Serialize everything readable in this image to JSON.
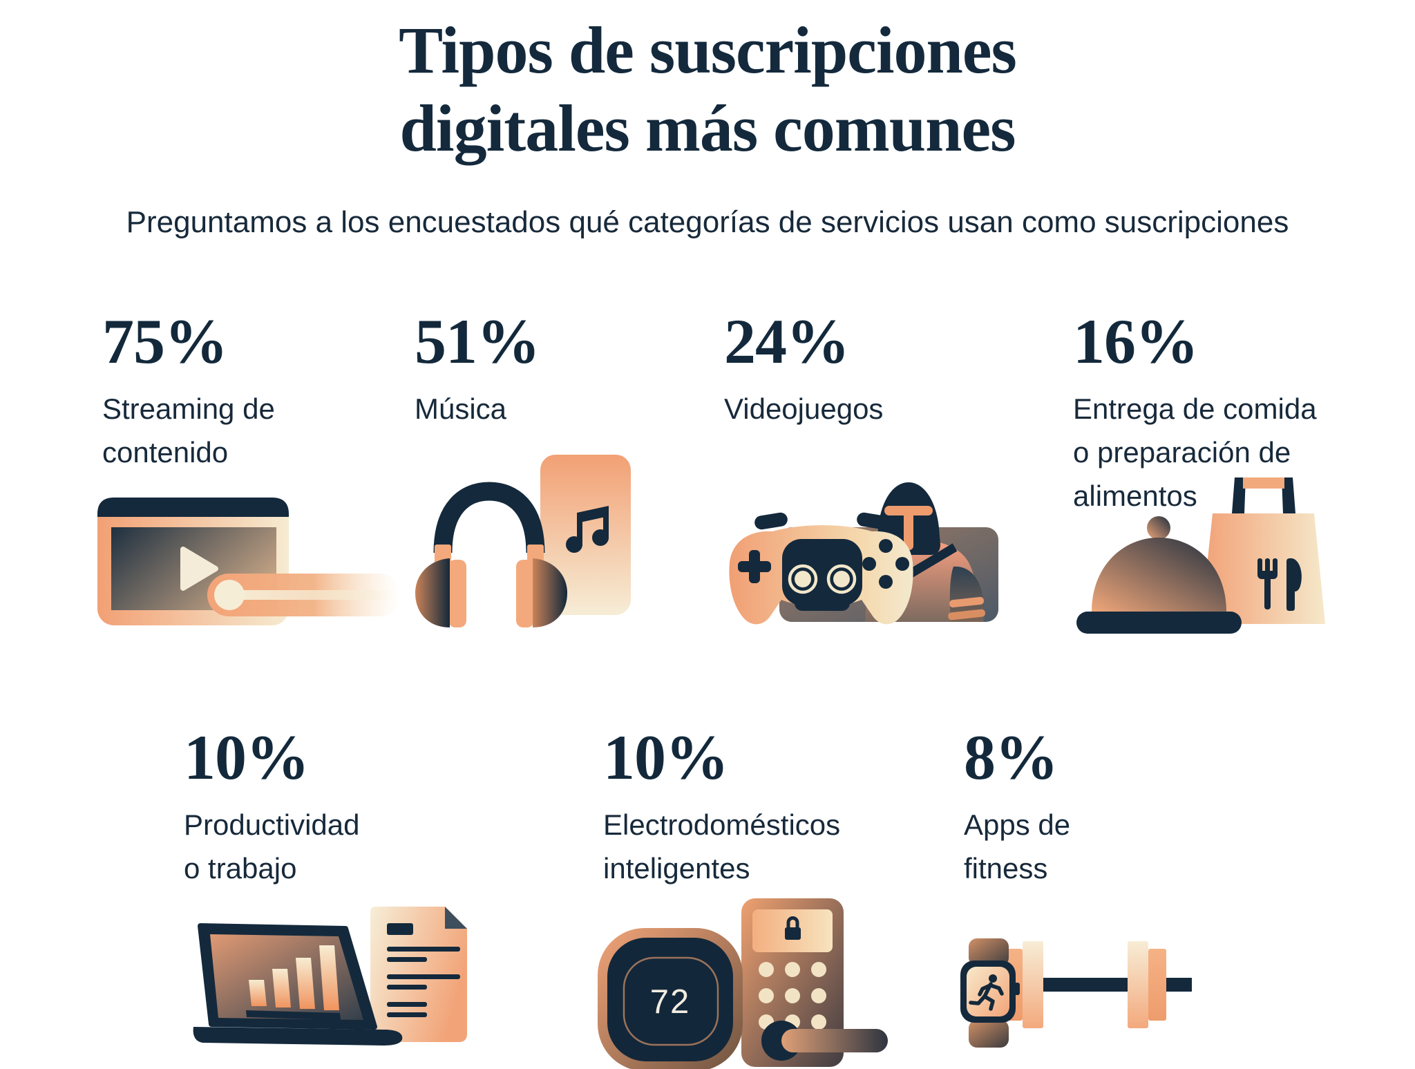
{
  "page": {
    "title_lines": [
      "Tipos de suscripciones",
      "digitales más comunes"
    ],
    "title": "Tipos de suscripciones digitales más comunes",
    "subtitle": "Preguntamos a los encuestados qué categorías de servicios usan como suscripciones"
  },
  "colors": {
    "navy": "#14293C",
    "salmon": "#F2A478",
    "cream": "#F6EBD1",
    "background": "#FFFFFF"
  },
  "stats": [
    {
      "percent": "75%",
      "label": "Streaming de contenido",
      "label_lines": [
        "Streaming de",
        "contenido"
      ],
      "icon": "video-player-icon"
    },
    {
      "percent": "51%",
      "label": "Música",
      "label_lines": [
        "Música"
      ],
      "icon": "headphones-music-icon"
    },
    {
      "percent": "24%",
      "label": "Videojuegos",
      "label_lines": [
        "Videojuegos"
      ],
      "icon": "game-controller-knight-icon"
    },
    {
      "percent": "16%",
      "label": "Entrega de comida o preparación de alimentos",
      "label_lines": [
        "Entrega de comida",
        "o preparación de",
        "alimentos"
      ],
      "icon": "food-delivery-icon"
    },
    {
      "percent": "10%",
      "label": "Productividad o trabajo",
      "label_lines": [
        "Productividad",
        "o trabajo"
      ],
      "icon": "laptop-document-icon"
    },
    {
      "percent": "10%",
      "label": "Electrodomésticos inteligentes",
      "label_lines": [
        "Electrodomésticos",
        "inteligentes"
      ],
      "icon": "thermostat-smart-lock-icon",
      "thermostat_display": "72"
    },
    {
      "percent": "8%",
      "label": "Apps de fitness",
      "label_lines": [
        "Apps de",
        "fitness"
      ],
      "icon": "smartwatch-dumbbell-icon"
    }
  ],
  "chart_data": {
    "type": "table",
    "title": "Tipos de suscripciones digitales más comunes",
    "subtitle": "Preguntamos a los encuestados qué categorías de servicios usan como suscripciones",
    "categories": [
      "Streaming de contenido",
      "Música",
      "Videojuegos",
      "Entrega de comida o preparación de alimentos",
      "Productividad o trabajo",
      "Electrodomésticos inteligentes",
      "Apps de fitness"
    ],
    "values": [
      75,
      51,
      24,
      16,
      10,
      10,
      8
    ],
    "unit": "%",
    "legend": false,
    "layout": "pictogram grid, 4 columns top row, 3 columns bottom row"
  }
}
